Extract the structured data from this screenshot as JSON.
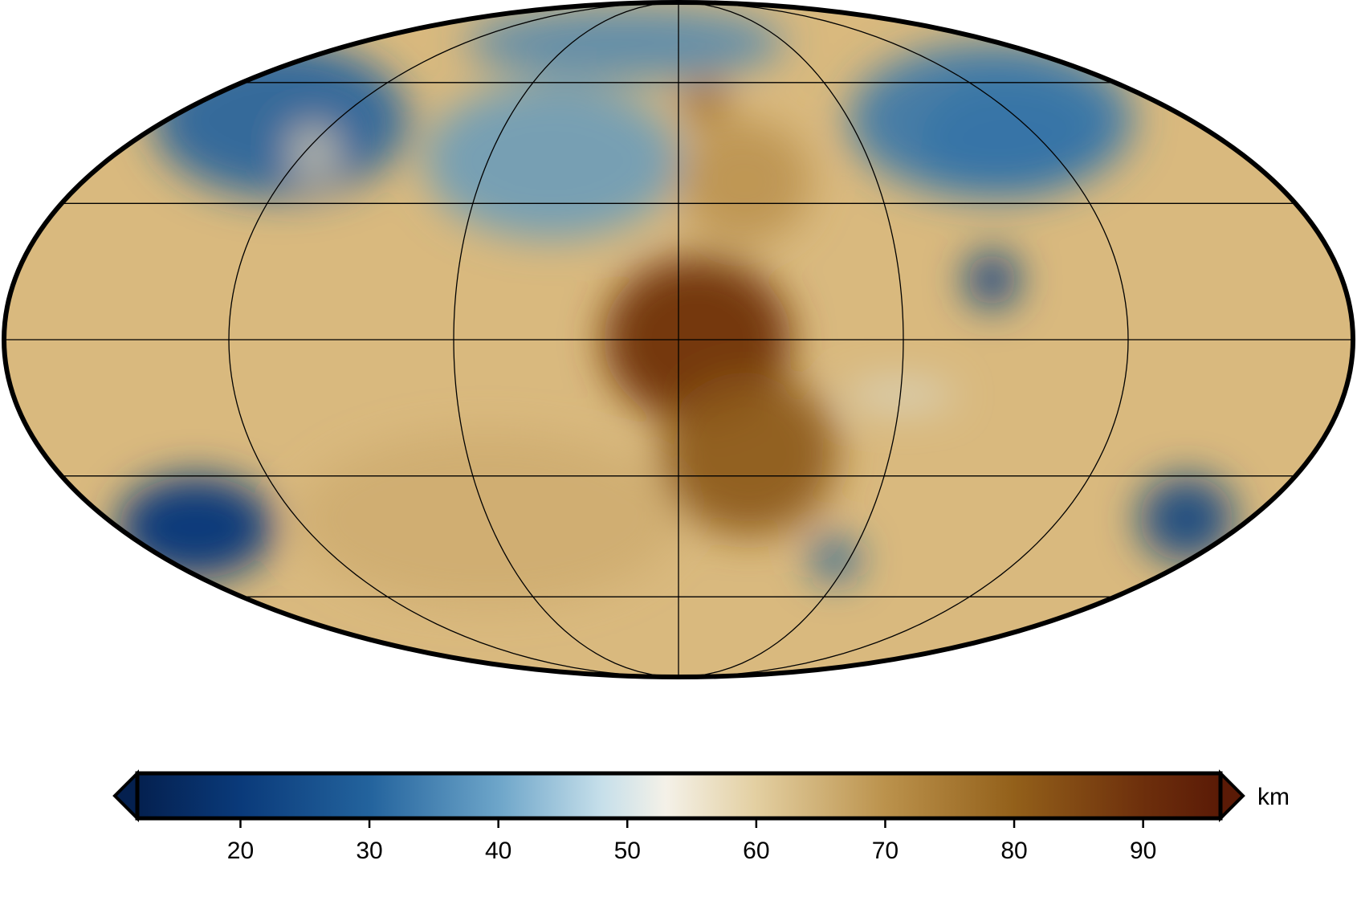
{
  "map": {
    "projection": "mollweide",
    "graticule": {
      "meridians_deg": [
        -180,
        -120,
        -60,
        0,
        60,
        120,
        180
      ],
      "parallels_deg": [
        -60,
        -30,
        0,
        30,
        60
      ],
      "line_color": "#000000"
    },
    "frame_color": "#000000",
    "features": [
      {
        "name": "northern-lowlands-west",
        "lon": -140,
        "lat": 50,
        "value": 30,
        "rx": 45,
        "ry": 22,
        "weight": 0.9
      },
      {
        "name": "northern-lowlands-north",
        "lon": -30,
        "lat": 72,
        "value": 35,
        "rx": 90,
        "ry": 15,
        "weight": 0.8
      },
      {
        "name": "northern-lowlands-east",
        "lon": 110,
        "lat": 50,
        "value": 33,
        "rx": 50,
        "ry": 22,
        "weight": 0.9
      },
      {
        "name": "acidalia",
        "lon": -40,
        "lat": 40,
        "value": 38,
        "rx": 40,
        "ry": 20,
        "weight": 0.8
      },
      {
        "name": "utopia-basin",
        "lon": 110,
        "lat": 45,
        "value": 32,
        "rx": 30,
        "ry": 15,
        "weight": 0.7
      },
      {
        "name": "isidis-basin",
        "lon": 85,
        "lat": 13,
        "value": 22,
        "rx": 7,
        "ry": 6,
        "weight": 1.0
      },
      {
        "name": "hellas-basin",
        "lon": -155,
        "lat": -42,
        "value": 20,
        "rx": 25,
        "ry": 12,
        "weight": 1.0
      },
      {
        "name": "hellas-basin-east",
        "lon": 160,
        "lat": -40,
        "value": 22,
        "rx": 15,
        "ry": 10,
        "weight": 0.9
      },
      {
        "name": "argyre-basin",
        "lon": 55,
        "lat": -50,
        "value": 28,
        "rx": 8,
        "ry": 5,
        "weight": 1.0
      },
      {
        "name": "tharsis",
        "lon": 5,
        "lat": 0,
        "value": 88,
        "rx": 25,
        "ry": 18,
        "weight": 1.0
      },
      {
        "name": "tharsis-south",
        "lon": 20,
        "lat": -25,
        "value": 82,
        "rx": 25,
        "ry": 18,
        "weight": 0.9
      },
      {
        "name": "olympus-mons",
        "lon": 10,
        "lat": 55,
        "value": 80,
        "rx": 8,
        "ry": 6,
        "weight": 0.9
      },
      {
        "name": "alba-region",
        "lon": 20,
        "lat": 35,
        "value": 72,
        "rx": 20,
        "ry": 15,
        "weight": 0.7
      },
      {
        "name": "valles-marineris",
        "lon": 60,
        "lat": -12,
        "value": 50,
        "rx": 15,
        "ry": 3,
        "weight": 0.6
      },
      {
        "name": "southern-highlands",
        "lon": -60,
        "lat": -40,
        "value": 67,
        "rx": 60,
        "ry": 20,
        "weight": 0.5
      },
      {
        "name": "elysium-ring",
        "lon": -117,
        "lat": 42,
        "value": 58,
        "rx": 7,
        "ry": 6,
        "weight": 0.8
      }
    ]
  },
  "colorbar": {
    "min": 12,
    "max": 96,
    "unit": "km",
    "ticks": [
      20,
      30,
      40,
      50,
      60,
      70,
      80,
      90
    ],
    "tick_labels": [
      "20",
      "30",
      "40",
      "50",
      "60",
      "70",
      "80",
      "90"
    ],
    "stops": [
      {
        "value": 12,
        "color": "#04204f"
      },
      {
        "value": 20,
        "color": "#0a3a7a"
      },
      {
        "value": 30,
        "color": "#23639d"
      },
      {
        "value": 40,
        "color": "#6da5c9"
      },
      {
        "value": 48,
        "color": "#c6dfea"
      },
      {
        "value": 53,
        "color": "#f4f1e8"
      },
      {
        "value": 60,
        "color": "#e3cfa1"
      },
      {
        "value": 70,
        "color": "#bb924c"
      },
      {
        "value": 80,
        "color": "#93601a"
      },
      {
        "value": 90,
        "color": "#6d2f0c"
      },
      {
        "value": 96,
        "color": "#5a1a06"
      }
    ],
    "underflow_color": "#04204f",
    "overflow_color": "#5a1a06"
  }
}
